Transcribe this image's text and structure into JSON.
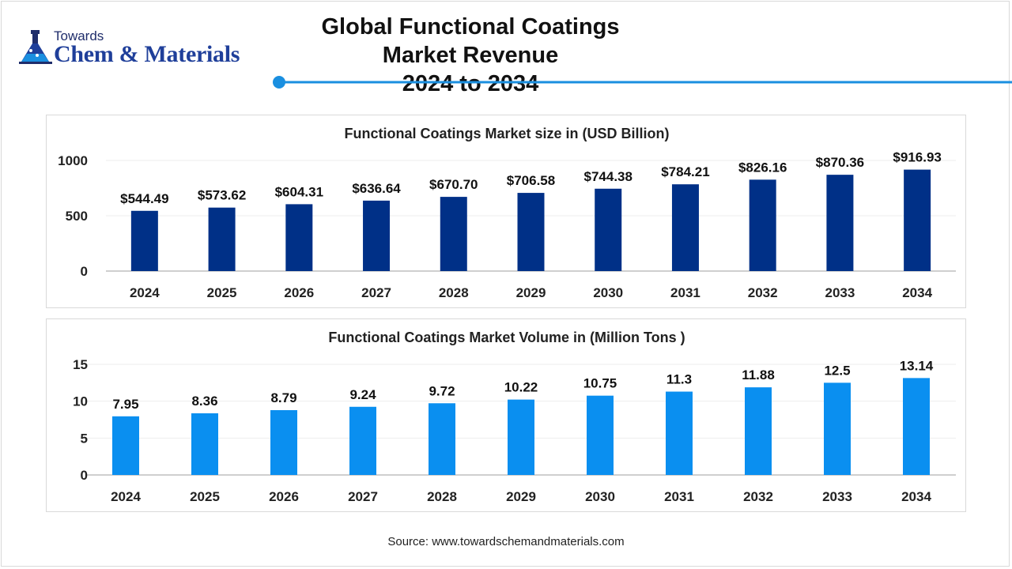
{
  "header": {
    "logo_top": "Towards",
    "logo_brand": "Chem & Materials",
    "title_line1": "Global Functional Coatings Market Revenue",
    "title_line2": "2024 to 2034",
    "accent_color": "#1a8fe0"
  },
  "chart_data": [
    {
      "type": "bar",
      "title": "Functional Coatings Market size in (USD Billion)",
      "xlabel": "",
      "ylabel": "",
      "categories": [
        "2024",
        "2025",
        "2026",
        "2027",
        "2028",
        "2029",
        "2030",
        "2031",
        "2032",
        "2033",
        "2034"
      ],
      "values": [
        544.49,
        573.62,
        604.31,
        636.64,
        670.7,
        706.58,
        744.38,
        784.21,
        826.16,
        870.36,
        916.93
      ],
      "data_labels": [
        "$544.49",
        "$573.62",
        "$604.31",
        "$636.64",
        "$670.70",
        "$706.58",
        "$744.38",
        "$784.21",
        "$826.16",
        "$870.36",
        "$916.93"
      ],
      "yticks": [
        0,
        500,
        1000
      ],
      "ylim": [
        0,
        1000
      ],
      "bar_color": "#003087",
      "grid": true,
      "legend": "none"
    },
    {
      "type": "bar",
      "title": "Functional Coatings Market Volume in (Million Tons )",
      "xlabel": "",
      "ylabel": "",
      "categories": [
        "2024",
        "2025",
        "2026",
        "2027",
        "2028",
        "2029",
        "2030",
        "2031",
        "2032",
        "2033",
        "2034"
      ],
      "values": [
        7.95,
        8.36,
        8.79,
        9.24,
        9.72,
        10.22,
        10.75,
        11.3,
        11.88,
        12.5,
        13.14
      ],
      "data_labels": [
        "7.95",
        "8.36",
        "8.79",
        "9.24",
        "9.72",
        "10.22",
        "10.75",
        "11.3",
        "11.88",
        "12.5",
        "13.14"
      ],
      "yticks": [
        0,
        5,
        10,
        15
      ],
      "ylim": [
        0,
        15
      ],
      "bar_color": "#0a8ff0",
      "grid": true,
      "legend": "none"
    }
  ],
  "footer": {
    "source": "Source: www.towardschemandmaterials.com"
  }
}
